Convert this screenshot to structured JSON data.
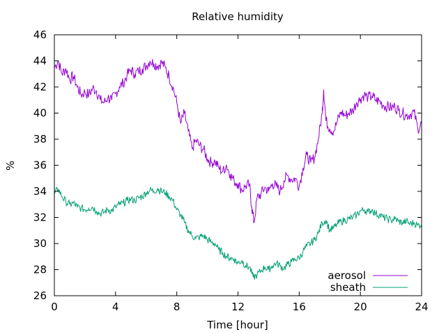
{
  "chart_data": {
    "type": "line",
    "title": "Relative humidity",
    "xlabel": "Time [hour]",
    "ylabel": "%",
    "xlim": [
      0,
      24
    ],
    "ylim": [
      26,
      46
    ],
    "xticks": [
      0,
      4,
      8,
      12,
      16,
      20,
      24
    ],
    "yticks": [
      26,
      28,
      30,
      32,
      34,
      36,
      38,
      40,
      42,
      44,
      46
    ],
    "grid": false,
    "legend_position": "bottom-right",
    "series": [
      {
        "name": "aerosol",
        "color": "#9400d3",
        "points": [
          [
            0.0,
            43.5
          ],
          [
            0.25,
            44.0
          ],
          [
            0.5,
            43.0
          ],
          [
            0.75,
            43.4
          ],
          [
            1.0,
            42.6
          ],
          [
            1.25,
            42.8
          ],
          [
            1.5,
            42.0
          ],
          [
            1.75,
            41.4
          ],
          [
            2.0,
            41.6
          ],
          [
            2.25,
            41.4
          ],
          [
            2.5,
            41.9
          ],
          [
            2.75,
            41.7
          ],
          [
            3.0,
            41.0
          ],
          [
            3.25,
            40.8
          ],
          [
            3.5,
            41.2
          ],
          [
            3.75,
            41.0
          ],
          [
            4.0,
            41.5
          ],
          [
            4.25,
            42.0
          ],
          [
            4.5,
            42.3
          ],
          [
            4.75,
            42.9
          ],
          [
            5.0,
            43.3
          ],
          [
            5.25,
            43.0
          ],
          [
            5.5,
            43.2
          ],
          [
            5.75,
            43.4
          ],
          [
            6.0,
            43.6
          ],
          [
            6.25,
            44.0
          ],
          [
            6.5,
            43.8
          ],
          [
            6.75,
            43.6
          ],
          [
            7.0,
            43.9
          ],
          [
            7.25,
            43.5
          ],
          [
            7.5,
            42.8
          ],
          [
            7.75,
            42.0
          ],
          [
            8.0,
            40.8
          ],
          [
            8.25,
            39.2
          ],
          [
            8.5,
            40.0
          ],
          [
            8.75,
            38.6
          ],
          [
            9.0,
            37.3
          ],
          [
            9.25,
            37.9
          ],
          [
            9.5,
            37.5
          ],
          [
            9.75,
            37.2
          ],
          [
            10.0,
            36.5
          ],
          [
            10.25,
            36.2
          ],
          [
            10.5,
            36.3
          ],
          [
            10.75,
            35.8
          ],
          [
            11.0,
            35.5
          ],
          [
            11.25,
            36.0
          ],
          [
            11.5,
            35.3
          ],
          [
            11.75,
            34.8
          ],
          [
            12.0,
            34.6
          ],
          [
            12.25,
            34.1
          ],
          [
            12.5,
            34.4
          ],
          [
            12.75,
            34.5
          ],
          [
            12.9,
            32.8
          ],
          [
            13.05,
            31.6
          ],
          [
            13.25,
            33.5
          ],
          [
            13.5,
            33.8
          ],
          [
            13.75,
            34.3
          ],
          [
            14.0,
            34.0
          ],
          [
            14.25,
            34.6
          ],
          [
            14.5,
            34.4
          ],
          [
            14.75,
            34.0
          ],
          [
            15.0,
            34.8
          ],
          [
            15.25,
            35.2
          ],
          [
            15.5,
            34.9
          ],
          [
            15.75,
            35.0
          ],
          [
            16.0,
            34.4
          ],
          [
            16.25,
            35.8
          ],
          [
            16.5,
            36.8
          ],
          [
            16.75,
            36.2
          ],
          [
            17.0,
            36.6
          ],
          [
            17.25,
            38.0
          ],
          [
            17.5,
            40.0
          ],
          [
            17.6,
            41.8
          ],
          [
            17.75,
            39.4
          ],
          [
            18.0,
            38.8
          ],
          [
            18.25,
            38.6
          ],
          [
            18.5,
            39.4
          ],
          [
            18.75,
            40.1
          ],
          [
            19.0,
            39.8
          ],
          [
            19.25,
            40.0
          ],
          [
            19.5,
            40.2
          ],
          [
            19.75,
            40.8
          ],
          [
            20.0,
            41.1
          ],
          [
            20.25,
            41.4
          ],
          [
            20.5,
            41.2
          ],
          [
            20.75,
            41.3
          ],
          [
            21.0,
            41.0
          ],
          [
            21.25,
            40.9
          ],
          [
            21.5,
            40.6
          ],
          [
            21.75,
            40.5
          ],
          [
            22.0,
            40.4
          ],
          [
            22.25,
            40.5
          ],
          [
            22.5,
            40.2
          ],
          [
            22.75,
            40.0
          ],
          [
            23.0,
            39.8
          ],
          [
            23.25,
            39.9
          ],
          [
            23.5,
            40.1
          ],
          [
            23.75,
            38.8
          ],
          [
            24.0,
            39.2
          ]
        ]
      },
      {
        "name": "sheath",
        "color": "#009e73",
        "points": [
          [
            0.0,
            33.8
          ],
          [
            0.25,
            34.2
          ],
          [
            0.5,
            33.6
          ],
          [
            0.75,
            33.2
          ],
          [
            1.0,
            33.0
          ],
          [
            1.25,
            33.1
          ],
          [
            1.5,
            32.8
          ],
          [
            1.75,
            32.7
          ],
          [
            2.0,
            32.6
          ],
          [
            2.25,
            32.7
          ],
          [
            2.5,
            32.8
          ],
          [
            2.75,
            32.5
          ],
          [
            3.0,
            32.3
          ],
          [
            3.25,
            32.4
          ],
          [
            3.5,
            32.6
          ],
          [
            3.75,
            32.5
          ],
          [
            4.0,
            32.8
          ],
          [
            4.25,
            33.0
          ],
          [
            4.5,
            33.1
          ],
          [
            4.75,
            33.3
          ],
          [
            5.0,
            33.4
          ],
          [
            5.25,
            33.3
          ],
          [
            5.5,
            33.5
          ],
          [
            5.75,
            33.6
          ],
          [
            6.0,
            33.9
          ],
          [
            6.25,
            34.1
          ],
          [
            6.5,
            34.0
          ],
          [
            6.75,
            34.2
          ],
          [
            7.0,
            34.0
          ],
          [
            7.25,
            33.9
          ],
          [
            7.5,
            33.6
          ],
          [
            7.75,
            33.3
          ],
          [
            8.0,
            32.6
          ],
          [
            8.25,
            32.2
          ],
          [
            8.5,
            31.6
          ],
          [
            8.75,
            31.0
          ],
          [
            9.0,
            30.6
          ],
          [
            9.25,
            30.4
          ],
          [
            9.5,
            30.5
          ],
          [
            9.75,
            30.6
          ],
          [
            10.0,
            30.3
          ],
          [
            10.25,
            30.1
          ],
          [
            10.5,
            30.0
          ],
          [
            10.75,
            29.5
          ],
          [
            11.0,
            29.3
          ],
          [
            11.25,
            29.0
          ],
          [
            11.5,
            28.9
          ],
          [
            11.75,
            28.8
          ],
          [
            12.0,
            28.5
          ],
          [
            12.25,
            28.7
          ],
          [
            12.5,
            28.3
          ],
          [
            12.75,
            28.2
          ],
          [
            13.0,
            27.4
          ],
          [
            13.25,
            27.6
          ],
          [
            13.5,
            27.9
          ],
          [
            13.75,
            28.2
          ],
          [
            14.0,
            28.0
          ],
          [
            14.25,
            28.3
          ],
          [
            14.5,
            28.5
          ],
          [
            14.75,
            28.3
          ],
          [
            15.0,
            28.1
          ],
          [
            15.25,
            28.4
          ],
          [
            15.5,
            28.6
          ],
          [
            15.75,
            28.8
          ],
          [
            16.0,
            28.9
          ],
          [
            16.25,
            29.4
          ],
          [
            16.5,
            29.8
          ],
          [
            16.75,
            30.0
          ],
          [
            17.0,
            30.3
          ],
          [
            17.25,
            30.8
          ],
          [
            17.5,
            31.6
          ],
          [
            17.75,
            31.8
          ],
          [
            18.0,
            31.0
          ],
          [
            18.25,
            31.2
          ],
          [
            18.5,
            31.5
          ],
          [
            18.75,
            31.7
          ],
          [
            19.0,
            31.8
          ],
          [
            19.25,
            31.9
          ],
          [
            19.5,
            32.0
          ],
          [
            19.75,
            32.2
          ],
          [
            20.0,
            32.5
          ],
          [
            20.25,
            32.6
          ],
          [
            20.5,
            32.4
          ],
          [
            20.75,
            32.6
          ],
          [
            21.0,
            32.3
          ],
          [
            21.25,
            32.2
          ],
          [
            21.5,
            32.0
          ],
          [
            21.75,
            31.9
          ],
          [
            22.0,
            31.8
          ],
          [
            22.25,
            31.9
          ],
          [
            22.5,
            31.7
          ],
          [
            22.75,
            31.6
          ],
          [
            23.0,
            31.7
          ],
          [
            23.25,
            31.5
          ],
          [
            23.5,
            31.6
          ],
          [
            23.75,
            31.4
          ],
          [
            24.0,
            31.5
          ]
        ]
      }
    ]
  }
}
